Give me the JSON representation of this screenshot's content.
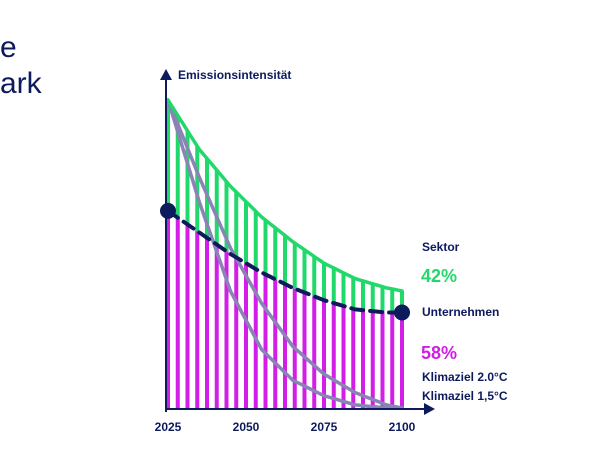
{
  "left_fragment": [
    "e",
    "ark"
  ],
  "chart_data": {
    "type": "area",
    "title": "",
    "ylabel": "Emissionsintensität",
    "xlabel": "",
    "x_ticks": [
      "2025",
      "2050",
      "2075",
      "2100"
    ],
    "xlim": [
      2025,
      2100
    ],
    "ylim": [
      0,
      1
    ],
    "grid": false,
    "series": [
      {
        "name": "Sektor",
        "color": "#21d96b",
        "x": [
          2025,
          2035,
          2045,
          2055,
          2065,
          2075,
          2085,
          2095,
          2100
        ],
        "y": [
          1.0,
          0.84,
          0.72,
          0.62,
          0.54,
          0.47,
          0.42,
          0.39,
          0.38
        ]
      },
      {
        "name": "Unternehmen",
        "color": "#0d1a5c",
        "style": "dashed",
        "x": [
          2025,
          2035,
          2045,
          2055,
          2065,
          2075,
          2085,
          2095,
          2100
        ],
        "y": [
          0.64,
          0.57,
          0.5,
          0.44,
          0.39,
          0.35,
          0.32,
          0.31,
          0.31
        ]
      },
      {
        "name": "Klimaziel 2.0°C",
        "color": "#8a83b6",
        "x": [
          2025,
          2035,
          2045,
          2055,
          2065,
          2075,
          2085,
          2095,
          2100
        ],
        "y": [
          1.0,
          0.75,
          0.52,
          0.34,
          0.2,
          0.11,
          0.05,
          0.01,
          0.0
        ]
      },
      {
        "name": "Klimaziel 1,5°C",
        "color": "#8a83b6",
        "x": [
          2025,
          2035,
          2045,
          2055,
          2065,
          2075,
          2085,
          2095,
          2100
        ],
        "y": [
          1.0,
          0.67,
          0.38,
          0.19,
          0.09,
          0.04,
          0.01,
          0.0,
          0.0
        ]
      }
    ],
    "shares": [
      {
        "label": "42%",
        "color": "#21d96b"
      },
      {
        "label": "58%",
        "color": "#d21ee6"
      }
    ],
    "fill_colors": {
      "sector_band": "#21d96b",
      "company_band": "#d21ee6"
    },
    "axis_color": "#0d1a5c"
  }
}
